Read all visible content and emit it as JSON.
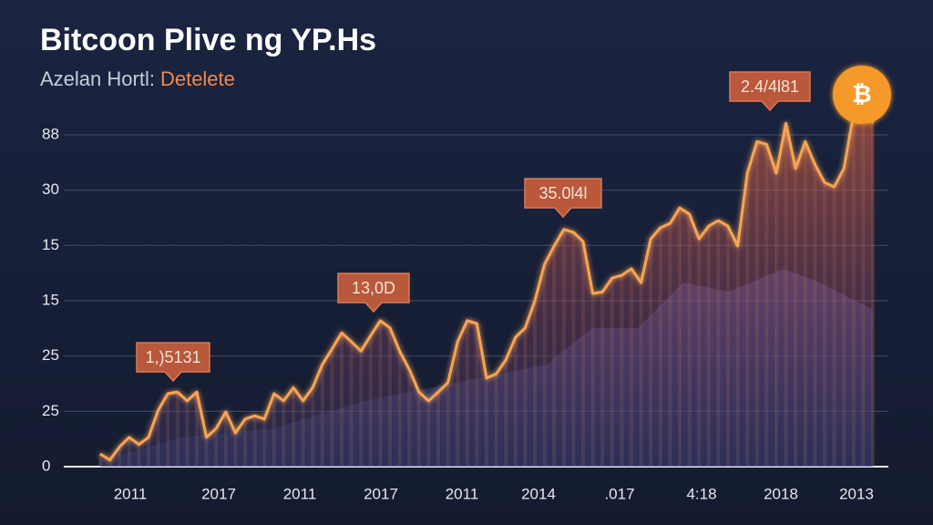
{
  "chart_data": {
    "type": "line",
    "title": "Bitcoon Plive ng YP.Hs",
    "subtitle": "Azelan Hortl:",
    "subtitle_highlight": "Detelete",
    "badge": "₿",
    "y_labels": [
      "0",
      "25",
      "25",
      "15",
      "15",
      "30",
      "88"
    ],
    "x_labels": [
      "2011",
      "2017",
      "2011",
      "2017",
      "2011",
      "2014",
      ".017",
      "4:18",
      "2018",
      "2013"
    ],
    "annotations": [
      "1,)5131",
      "13,0D",
      "35.0l4l",
      "2.4/4l81"
    ],
    "ylim": [
      0,
      6
    ],
    "yticks": [
      0,
      1,
      2,
      3,
      4,
      5,
      6
    ],
    "grid": true,
    "series": [
      {
        "color": "#f7a452",
        "values": [
          0.23,
          0.12,
          0.36,
          0.53,
          0.4,
          0.53,
          1.02,
          1.32,
          1.35,
          1.19,
          1.35,
          0.53,
          0.69,
          0.99,
          0.61,
          0.86,
          0.92,
          0.86,
          1.32,
          1.19,
          1.43,
          1.19,
          1.43,
          1.85,
          2.13,
          2.42,
          2.26,
          2.09,
          2.37,
          2.64,
          2.51,
          2.09,
          1.76,
          1.35,
          1.19,
          1.35,
          1.52,
          2.26,
          2.64,
          2.59,
          1.6,
          1.68,
          1.93,
          2.34,
          2.51,
          3.0,
          3.66,
          3.99,
          4.29,
          4.24,
          4.07,
          3.13,
          3.16,
          3.41,
          3.46,
          3.58,
          3.33,
          4.12,
          4.32,
          4.4,
          4.68,
          4.57,
          4.12,
          4.35,
          4.45,
          4.35,
          3.99,
          5.31,
          5.88,
          5.83,
          5.31,
          6.21,
          5.39,
          5.88,
          5.47,
          5.14,
          5.06,
          5.39,
          6.38,
          6.71,
          6.21
        ]
      }
    ]
  }
}
